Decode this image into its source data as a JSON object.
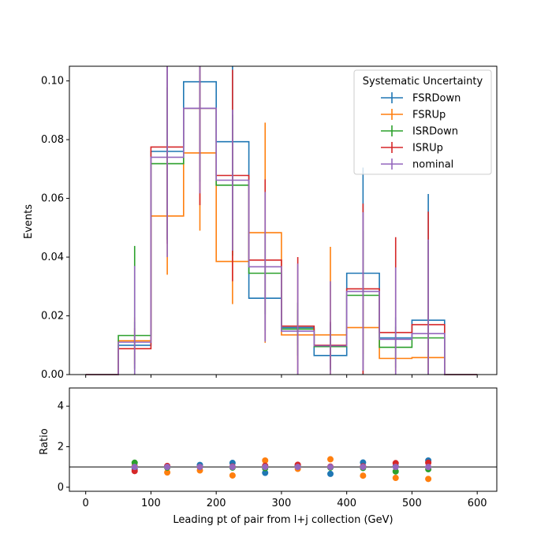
{
  "chart_data": [
    {
      "type": "histogram",
      "xlabel": "",
      "ylabel": "Events",
      "xlim": [
        -25,
        630
      ],
      "ylim": [
        0,
        0.105
      ],
      "xticks": [
        0,
        100,
        200,
        300,
        400,
        500,
        600
      ],
      "yticks": [
        0.0,
        0.02,
        0.04,
        0.06,
        0.08,
        0.1
      ],
      "ytick_labels": [
        "0.00",
        "0.02",
        "0.04",
        "0.06",
        "0.08",
        "0.10"
      ],
      "bin_edges": [
        0,
        50,
        100,
        150,
        200,
        250,
        300,
        350,
        400,
        450,
        500,
        550,
        600
      ],
      "legend": {
        "title": "Systematic Uncertainty",
        "position": "top-right"
      },
      "grid": false,
      "series": [
        {
          "name": "FSRDown",
          "color": "#1f77b4",
          "values": [
            0,
            0.01,
            0.076,
            0.0997,
            0.0793,
            0.026,
            0.016,
            0.0065,
            0.0345,
            0.0125,
            0.0185,
            0
          ],
          "errors": [
            0,
            0.008,
            0.03,
            0.025,
            0.03,
            0.011,
            0.006,
            0.005,
            0.036,
            0.007,
            0.043,
            0
          ]
        },
        {
          "name": "FSRUp",
          "color": "#ff7f0e",
          "values": [
            0,
            0.0115,
            0.054,
            0.0755,
            0.0385,
            0.0483,
            0.0135,
            0.0135,
            0.016,
            0.0055,
            0.0058,
            0
          ],
          "errors": [
            0,
            0.008,
            0.02,
            0.0265,
            0.0145,
            0.0375,
            0.0085,
            0.03,
            0.009,
            0.0045,
            0.0045,
            0
          ]
        },
        {
          "name": "ISRDown",
          "color": "#2ca02c",
          "values": [
            0,
            0.0133,
            0.0718,
            0.0907,
            0.0645,
            0.0345,
            0.0155,
            0.0095,
            0.027,
            0.0093,
            0.0125,
            0
          ],
          "errors": [
            0,
            0.0305,
            0.026,
            0.025,
            0.024,
            0.014,
            0.009,
            0.008,
            0.022,
            0.007,
            0.033,
            0
          ]
        },
        {
          "name": "ISRUp",
          "color": "#d62728",
          "values": [
            0,
            0.0088,
            0.0775,
            0.0907,
            0.0678,
            0.039,
            0.0165,
            0.01,
            0.0292,
            0.0143,
            0.017,
            0
          ],
          "errors": [
            0,
            0.007,
            0.033,
            0.033,
            0.036,
            0.0275,
            0.0235,
            0.008,
            0.029,
            0.0325,
            0.0385,
            0
          ]
        },
        {
          "name": "nominal",
          "color": "#9467bd",
          "values": [
            0,
            0.011,
            0.074,
            0.0907,
            0.0662,
            0.0367,
            0.0148,
            0.0098,
            0.0283,
            0.012,
            0.014,
            0
          ],
          "errors": [
            0,
            0.026,
            0.034,
            0.029,
            0.024,
            0.0255,
            0.023,
            0.022,
            0.027,
            0.0245,
            0.032,
            0
          ]
        }
      ]
    },
    {
      "type": "scatter",
      "xlabel": "Leading pt of pair from l+j collection (GeV)",
      "ylabel": "Ratio",
      "xlim": [
        -25,
        630
      ],
      "ylim": [
        -0.2,
        4.9
      ],
      "xticks": [
        0,
        100,
        200,
        300,
        400,
        500,
        600
      ],
      "yticks": [
        0,
        2,
        4
      ],
      "reference_line": 1.0,
      "x": [
        75,
        125,
        175,
        225,
        275,
        325,
        375,
        425,
        475,
        525
      ],
      "series": [
        {
          "name": "FSRDown",
          "color": "#1f77b4",
          "values": [
            0.91,
            1.03,
            1.1,
            1.2,
            0.71,
            1.08,
            0.66,
            1.22,
            1.04,
            1.32
          ]
        },
        {
          "name": "FSRUp",
          "color": "#ff7f0e",
          "values": [
            1.05,
            0.73,
            0.83,
            0.58,
            1.32,
            0.91,
            1.38,
            0.57,
            0.46,
            0.41
          ]
        },
        {
          "name": "ISRDown",
          "color": "#2ca02c",
          "values": [
            1.21,
            0.97,
            1.0,
            0.97,
            0.94,
            1.05,
            0.97,
            0.95,
            0.78,
            0.89
          ]
        },
        {
          "name": "ISRUp",
          "color": "#d62728",
          "values": [
            0.8,
            1.05,
            1.0,
            1.02,
            1.06,
            1.11,
            1.02,
            1.03,
            1.19,
            1.21
          ]
        },
        {
          "name": "nominal",
          "color": "#9467bd",
          "values": [
            1.0,
            1.0,
            1.0,
            1.0,
            1.0,
            1.0,
            1.0,
            1.0,
            1.0,
            1.0
          ]
        }
      ]
    }
  ]
}
